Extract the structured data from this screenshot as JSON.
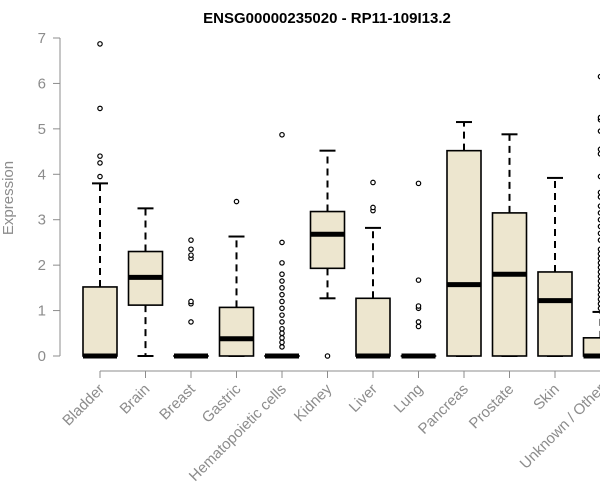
{
  "chart_data": {
    "type": "boxplot",
    "title": "ENSG00000235020 - RP11-109I13.2",
    "xlabel": "",
    "ylabel": "Expression",
    "ylim": [
      0,
      7
    ],
    "yticks": [
      0,
      1,
      2,
      3,
      4,
      5,
      6,
      7
    ],
    "categories": [
      "Bladder",
      "Brain",
      "Breast",
      "Gastric",
      "Hematopoietic cells",
      "Kidney",
      "Liver",
      "Lung",
      "Pancreas",
      "Prostate",
      "Skin",
      "Unknown / Other"
    ],
    "box_fill": "#ede6cf",
    "box_stroke": "#000000",
    "axis_color": "#8c8c8c",
    "grid": false,
    "boxes": [
      {
        "category": "Bladder",
        "low": 0,
        "q1": 0,
        "median": 0,
        "q3": 1.52,
        "high": 3.8,
        "outliers": [
          3.95,
          4.25,
          4.4,
          5.45,
          6.87
        ]
      },
      {
        "category": "Brain",
        "low": 0,
        "q1": 1.12,
        "median": 1.73,
        "q3": 2.3,
        "high": 3.25,
        "outliers": []
      },
      {
        "category": "Breast",
        "low": 0,
        "q1": 0,
        "median": 0,
        "q3": 0,
        "high": 0,
        "outliers": [
          0.75,
          1.15,
          1.2,
          2.15,
          2.22,
          2.35,
          2.55
        ]
      },
      {
        "category": "Gastric",
        "low": 0,
        "q1": 0,
        "median": 0.38,
        "q3": 1.07,
        "high": 2.63,
        "outliers": [
          3.4
        ]
      },
      {
        "category": "Hematopoietic cells",
        "low": 0,
        "q1": 0,
        "median": 0,
        "q3": 0,
        "high": 0,
        "outliers": [
          0.2,
          0.3,
          0.4,
          0.5,
          0.6,
          0.75,
          0.9,
          1.05,
          1.2,
          1.35,
          1.5,
          1.65,
          1.8,
          2.05,
          2.5,
          4.87
        ]
      },
      {
        "category": "Kidney",
        "low": 1.27,
        "q1": 1.93,
        "median": 2.68,
        "q3": 3.18,
        "high": 4.52,
        "outliers": [
          0
        ]
      },
      {
        "category": "Liver",
        "low": 0,
        "q1": 0,
        "median": 0,
        "q3": 1.27,
        "high": 2.82,
        "outliers": [
          3.2,
          3.27,
          3.82
        ]
      },
      {
        "category": "Lung",
        "low": 0,
        "q1": 0,
        "median": 0,
        "q3": 0,
        "high": 0,
        "outliers": [
          0.65,
          0.75,
          1.05,
          1.1,
          1.67,
          3.8
        ]
      },
      {
        "category": "Pancreas",
        "low": 0,
        "q1": 0,
        "median": 1.57,
        "q3": 4.52,
        "high": 5.15,
        "outliers": []
      },
      {
        "category": "Prostate",
        "low": 0,
        "q1": 0,
        "median": 1.8,
        "q3": 3.15,
        "high": 4.88,
        "outliers": []
      },
      {
        "category": "Skin",
        "low": 0,
        "q1": 0,
        "median": 1.22,
        "q3": 1.85,
        "high": 3.92,
        "outliers": []
      },
      {
        "category": "Unknown / Other",
        "low": 0,
        "q1": 0,
        "median": 0,
        "q3": 0.4,
        "high": 0.97,
        "outliers": [
          1.05,
          1.15,
          1.25,
          1.35,
          1.45,
          1.55,
          1.65,
          1.75,
          1.85,
          1.95,
          2.05,
          2.15,
          2.25,
          2.35,
          2.55,
          2.7,
          2.85,
          3.0,
          3.15,
          3.3,
          3.5,
          3.6,
          3.95,
          4.45,
          4.55,
          4.95,
          5.2,
          5.25,
          6.15
        ]
      }
    ]
  }
}
